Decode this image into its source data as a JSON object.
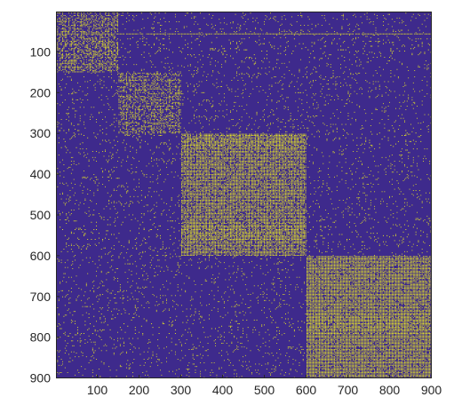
{
  "chart_data": {
    "type": "heatmap",
    "title": "",
    "xlabel": "",
    "ylabel": "",
    "xlim": [
      1,
      900
    ],
    "ylim": [
      1,
      900
    ],
    "y_reversed": true,
    "grid": false,
    "colormap": [
      "#3e2a8c",
      "#f4f51b"
    ],
    "x_ticks": [
      100,
      200,
      300,
      400,
      500,
      600,
      700,
      800,
      900
    ],
    "x_tick_labels": [
      "100",
      "200",
      "300",
      "400",
      "500",
      "600",
      "700",
      "800",
      "900"
    ],
    "y_ticks": [
      100,
      200,
      300,
      400,
      500,
      600,
      700,
      800,
      900
    ],
    "y_tick_labels": [
      "100",
      "200",
      "300",
      "400",
      "500",
      "600",
      "700",
      "800",
      "900"
    ],
    "blocks": [
      {
        "start": 1,
        "end": 150,
        "density": 0.45
      },
      {
        "start": 151,
        "end": 300,
        "density": 0.45
      },
      {
        "start": 301,
        "end": 600,
        "density": 0.75
      },
      {
        "start": 601,
        "end": 900,
        "density": 0.82
      }
    ],
    "background_density": 0.06,
    "special_row": 55
  }
}
